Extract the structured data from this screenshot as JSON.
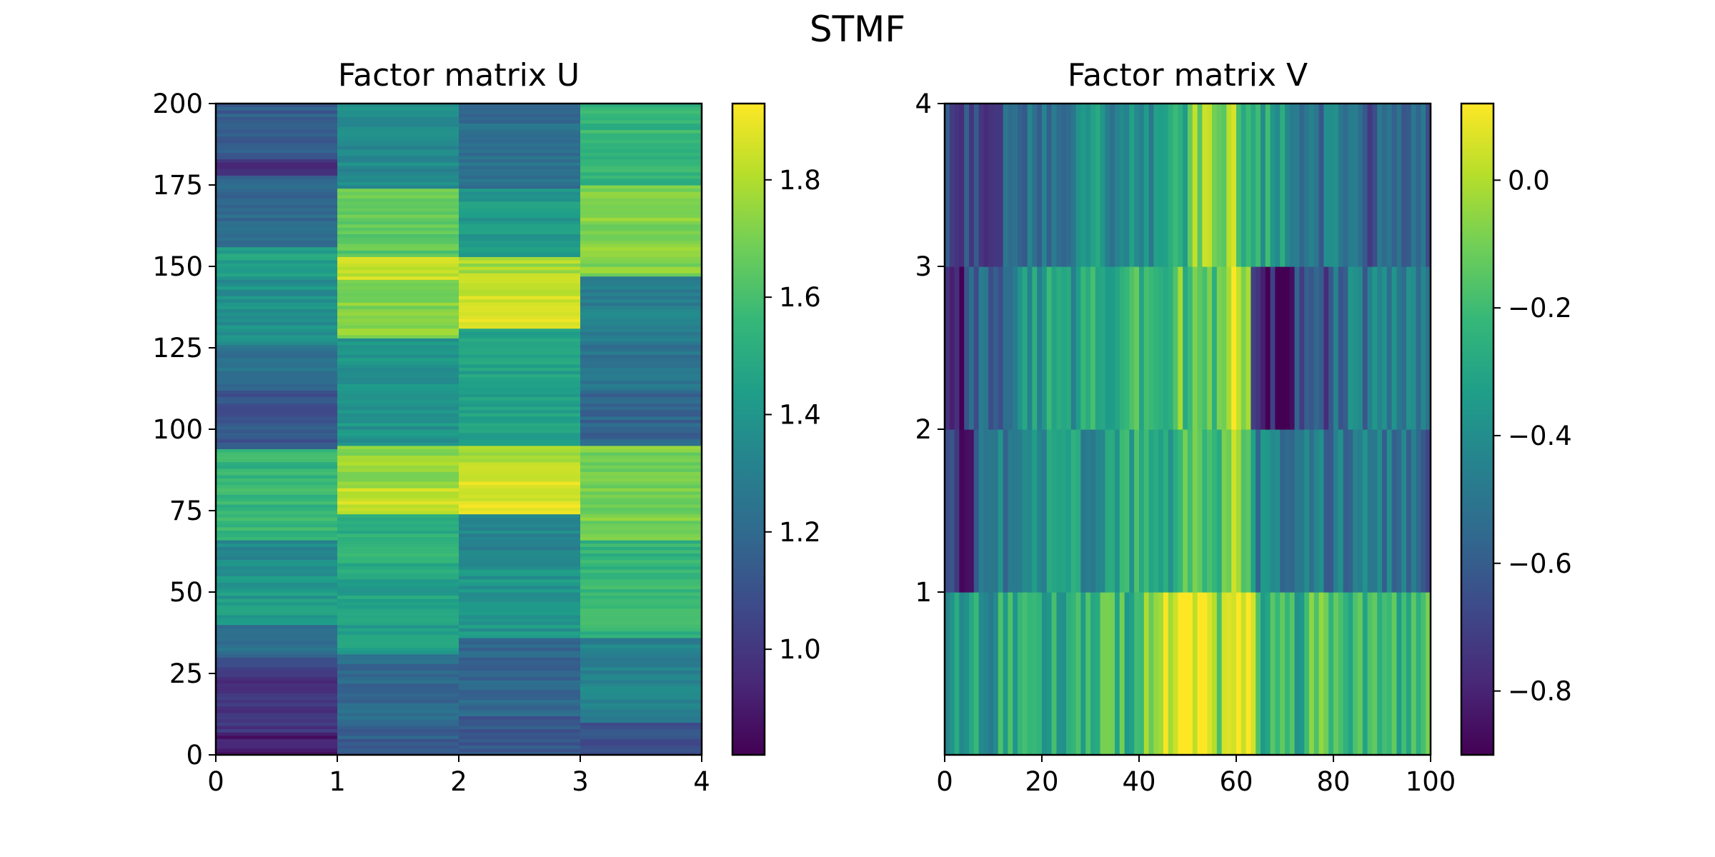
{
  "figure": {
    "title": "STMF"
  },
  "colormap": [
    "#440154",
    "#482878",
    "#3e4989",
    "#31688e",
    "#26828e",
    "#1f9e89",
    "#35b779",
    "#6ece58",
    "#b5de2b",
    "#fde725"
  ],
  "chart_data": [
    {
      "type": "heatmap",
      "title": "Factor matrix U",
      "xlabel": "",
      "ylabel": "",
      "xlim": [
        0,
        4
      ],
      "ylim": [
        0,
        200
      ],
      "xticks": [
        0,
        1,
        2,
        3,
        4
      ],
      "yticks": [
        0,
        25,
        50,
        75,
        100,
        125,
        150,
        175,
        200
      ],
      "rows": 200,
      "cols": 4,
      "colorbar": {
        "min": 0.82,
        "max": 1.93,
        "ticks": [
          1.0,
          1.2,
          1.4,
          1.6,
          1.8
        ],
        "tick_labels": [
          "1.0",
          "1.2",
          "1.4",
          "1.6",
          "1.8"
        ]
      },
      "columns": [
        {
          "column": 0,
          "segments": [
            {
              "from": 0,
              "to": 7,
              "value": 0.9
            },
            {
              "from": 7,
              "to": 24,
              "value": 0.98
            },
            {
              "from": 24,
              "to": 30,
              "value": 1.06
            },
            {
              "from": 30,
              "to": 40,
              "value": 1.22
            },
            {
              "from": 40,
              "to": 55,
              "value": 1.42
            },
            {
              "from": 55,
              "to": 66,
              "value": 1.35
            },
            {
              "from": 66,
              "to": 94,
              "value": 1.55
            },
            {
              "from": 94,
              "to": 112,
              "value": 1.12
            },
            {
              "from": 112,
              "to": 126,
              "value": 1.22
            },
            {
              "from": 126,
              "to": 146,
              "value": 1.38
            },
            {
              "from": 146,
              "to": 156,
              "value": 1.45
            },
            {
              "from": 156,
              "to": 178,
              "value": 1.2
            },
            {
              "from": 178,
              "to": 183,
              "value": 0.98
            },
            {
              "from": 183,
              "to": 200,
              "value": 1.15
            }
          ]
        },
        {
          "column": 1,
          "segments": [
            {
              "from": 0,
              "to": 10,
              "value": 1.15
            },
            {
              "from": 10,
              "to": 31,
              "value": 1.2
            },
            {
              "from": 31,
              "to": 56,
              "value": 1.45
            },
            {
              "from": 56,
              "to": 74,
              "value": 1.52
            },
            {
              "from": 74,
              "to": 82,
              "value": 1.83
            },
            {
              "from": 82,
              "to": 95,
              "value": 1.75
            },
            {
              "from": 95,
              "to": 128,
              "value": 1.4
            },
            {
              "from": 128,
              "to": 146,
              "value": 1.73
            },
            {
              "from": 146,
              "to": 153,
              "value": 1.85
            },
            {
              "from": 153,
              "to": 174,
              "value": 1.65
            },
            {
              "from": 174,
              "to": 200,
              "value": 1.35
            }
          ]
        },
        {
          "column": 2,
          "segments": [
            {
              "from": 0,
              "to": 12,
              "value": 1.13
            },
            {
              "from": 12,
              "to": 36,
              "value": 1.18
            },
            {
              "from": 36,
              "to": 57,
              "value": 1.4
            },
            {
              "from": 57,
              "to": 74,
              "value": 1.32
            },
            {
              "from": 74,
              "to": 84,
              "value": 1.88
            },
            {
              "from": 84,
              "to": 95,
              "value": 1.8
            },
            {
              "from": 95,
              "to": 131,
              "value": 1.45
            },
            {
              "from": 131,
              "to": 148,
              "value": 1.86
            },
            {
              "from": 148,
              "to": 153,
              "value": 1.78
            },
            {
              "from": 153,
              "to": 174,
              "value": 1.42
            },
            {
              "from": 174,
              "to": 200,
              "value": 1.22
            }
          ]
        },
        {
          "column": 3,
          "segments": [
            {
              "from": 0,
              "to": 10,
              "value": 1.08
            },
            {
              "from": 10,
              "to": 36,
              "value": 1.32
            },
            {
              "from": 36,
              "to": 66,
              "value": 1.55
            },
            {
              "from": 66,
              "to": 95,
              "value": 1.7
            },
            {
              "from": 95,
              "to": 112,
              "value": 1.18
            },
            {
              "from": 112,
              "to": 126,
              "value": 1.25
            },
            {
              "from": 126,
              "to": 147,
              "value": 1.3
            },
            {
              "from": 147,
              "to": 175,
              "value": 1.72
            },
            {
              "from": 175,
              "to": 200,
              "value": 1.55
            }
          ]
        }
      ]
    },
    {
      "type": "heatmap",
      "title": "Factor matrix V",
      "xlabel": "",
      "ylabel": "",
      "xlim": [
        0,
        100
      ],
      "ylim": [
        0,
        4
      ],
      "xticks": [
        0,
        20,
        40,
        60,
        80,
        100
      ],
      "yticks": [
        1,
        2,
        3,
        4
      ],
      "rows": 4,
      "cols": 100,
      "colorbar": {
        "min": -0.9,
        "max": 0.12,
        "ticks": [
          -0.8,
          -0.6,
          -0.4,
          -0.2,
          0.0
        ],
        "tick_labels": [
          "−0.8",
          "−0.6",
          "−0.4",
          "−0.2",
          "0.0"
        ]
      },
      "rows_data": [
        {
          "row": 0,
          "segments": [
            {
              "from": 0,
              "to": 10,
              "value": -0.35
            },
            {
              "from": 10,
              "to": 25,
              "value": -0.3
            },
            {
              "from": 25,
              "to": 40,
              "value": -0.22
            },
            {
              "from": 40,
              "to": 45,
              "value": -0.12
            },
            {
              "from": 45,
              "to": 55,
              "value": 0.07
            },
            {
              "from": 55,
              "to": 60,
              "value": -0.06
            },
            {
              "from": 60,
              "to": 64,
              "value": 0.08
            },
            {
              "from": 64,
              "to": 75,
              "value": -0.25
            },
            {
              "from": 75,
              "to": 90,
              "value": -0.18
            },
            {
              "from": 90,
              "to": 100,
              "value": -0.22
            }
          ]
        },
        {
          "row": 1,
          "segments": [
            {
              "from": 0,
              "to": 6,
              "value": -0.75
            },
            {
              "from": 6,
              "to": 18,
              "value": -0.5
            },
            {
              "from": 18,
              "to": 35,
              "value": -0.38
            },
            {
              "from": 35,
              "to": 48,
              "value": -0.3
            },
            {
              "from": 48,
              "to": 58,
              "value": -0.2
            },
            {
              "from": 58,
              "to": 63,
              "value": -0.05
            },
            {
              "from": 63,
              "to": 78,
              "value": -0.45
            },
            {
              "from": 78,
              "to": 92,
              "value": -0.5
            },
            {
              "from": 92,
              "to": 100,
              "value": -0.55
            }
          ]
        },
        {
          "row": 2,
          "segments": [
            {
              "from": 0,
              "to": 4,
              "value": -0.85
            },
            {
              "from": 4,
              "to": 15,
              "value": -0.55
            },
            {
              "from": 15,
              "to": 30,
              "value": -0.35
            },
            {
              "from": 30,
              "to": 45,
              "value": -0.25
            },
            {
              "from": 45,
              "to": 58,
              "value": -0.15
            },
            {
              "from": 58,
              "to": 63,
              "value": 0.05
            },
            {
              "from": 63,
              "to": 72,
              "value": -0.8
            },
            {
              "from": 72,
              "to": 80,
              "value": -0.65
            },
            {
              "from": 80,
              "to": 100,
              "value": -0.5
            }
          ]
        },
        {
          "row": 3,
          "segments": [
            {
              "from": 0,
              "to": 12,
              "value": -0.7
            },
            {
              "from": 12,
              "to": 25,
              "value": -0.5
            },
            {
              "from": 25,
              "to": 45,
              "value": -0.4
            },
            {
              "from": 45,
              "to": 50,
              "value": -0.3
            },
            {
              "from": 50,
              "to": 60,
              "value": -0.05
            },
            {
              "from": 60,
              "to": 70,
              "value": -0.3
            },
            {
              "from": 70,
              "to": 85,
              "value": -0.5
            },
            {
              "from": 85,
              "to": 100,
              "value": -0.62
            }
          ]
        }
      ]
    }
  ]
}
